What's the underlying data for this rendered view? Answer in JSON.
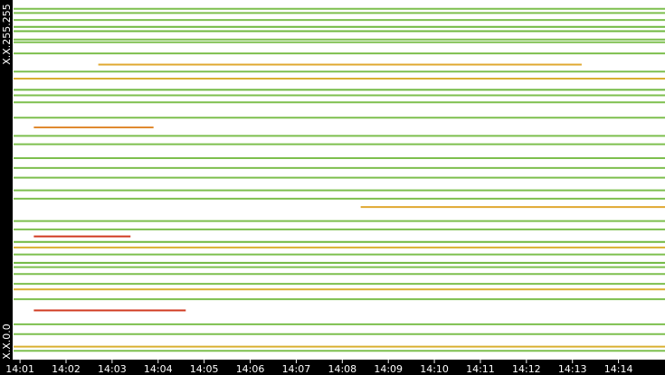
{
  "chart_data": {
    "type": "raster",
    "y_top_label": "X.X.255.255",
    "y_bottom_label": "X.X.0.0",
    "xlim": [
      0.86,
      15.01
    ],
    "ylim": [
      0,
      255
    ],
    "xticks": [
      {
        "value": 1,
        "label": "14:01"
      },
      {
        "value": 2,
        "label": "14:02"
      },
      {
        "value": 3,
        "label": "14:03"
      },
      {
        "value": 4,
        "label": "14:04"
      },
      {
        "value": 5,
        "label": "14:05"
      },
      {
        "value": 6,
        "label": "14:06"
      },
      {
        "value": 7,
        "label": "14:07"
      },
      {
        "value": 8,
        "label": "14:08"
      },
      {
        "value": 9,
        "label": "14:09"
      },
      {
        "value": 10,
        "label": "14:10"
      },
      {
        "value": 11,
        "label": "14:11"
      },
      {
        "value": 12,
        "label": "14:12"
      },
      {
        "value": 13,
        "label": "14:13"
      },
      {
        "value": 14,
        "label": "14:14"
      }
    ],
    "segments": [
      {
        "row": 250,
        "start": 0.86,
        "end": 15.01,
        "color": "#7dbf4e"
      },
      {
        "row": 247,
        "start": 0.86,
        "end": 15.01,
        "color": "#7dbf4e"
      },
      {
        "row": 242,
        "start": 0.86,
        "end": 15.01,
        "color": "#7dbf4e"
      },
      {
        "row": 237,
        "start": 0.86,
        "end": 15.01,
        "color": "#6fb83f"
      },
      {
        "row": 234,
        "start": 0.86,
        "end": 15.01,
        "color": "#6fb83f"
      },
      {
        "row": 228,
        "start": 0.86,
        "end": 15.01,
        "color": "#7dbf4e"
      },
      {
        "row": 226,
        "start": 0.86,
        "end": 15.01,
        "color": "#7dbf4e"
      },
      {
        "row": 218,
        "start": 0.86,
        "end": 15.01,
        "color": "#7dbf4e"
      },
      {
        "row": 210,
        "start": 2.7,
        "end": 13.2,
        "color": "#e0a830"
      },
      {
        "row": 205,
        "start": 0.86,
        "end": 15.01,
        "color": "#7dbf4e"
      },
      {
        "row": 200,
        "start": 0.86,
        "end": 15.01,
        "color": "#d9b030"
      },
      {
        "row": 192,
        "start": 0.86,
        "end": 15.01,
        "color": "#6fb83f"
      },
      {
        "row": 188,
        "start": 0.86,
        "end": 15.01,
        "color": "#7dbf4e"
      },
      {
        "row": 183,
        "start": 0.86,
        "end": 15.01,
        "color": "#7dbf4e"
      },
      {
        "row": 172,
        "start": 0.86,
        "end": 15.01,
        "color": "#7dbf4e"
      },
      {
        "row": 165,
        "start": 1.3,
        "end": 3.9,
        "color": "#e08a30"
      },
      {
        "row": 159,
        "start": 0.86,
        "end": 15.01,
        "color": "#7dbf4e"
      },
      {
        "row": 153,
        "start": 0.86,
        "end": 15.01,
        "color": "#7dbf4e"
      },
      {
        "row": 143,
        "start": 0.86,
        "end": 15.01,
        "color": "#7dbf4e"
      },
      {
        "row": 136,
        "start": 0.86,
        "end": 15.01,
        "color": "#7dbf4e"
      },
      {
        "row": 129,
        "start": 0.86,
        "end": 15.01,
        "color": "#7dbf4e"
      },
      {
        "row": 120,
        "start": 0.86,
        "end": 15.01,
        "color": "#7dbf4e"
      },
      {
        "row": 114,
        "start": 0.86,
        "end": 15.01,
        "color": "#7dbf4e"
      },
      {
        "row": 108,
        "start": 8.4,
        "end": 15.01,
        "color": "#e0a830"
      },
      {
        "row": 98,
        "start": 0.86,
        "end": 15.01,
        "color": "#7dbf4e"
      },
      {
        "row": 92,
        "start": 0.86,
        "end": 15.01,
        "color": "#7dbf4e"
      },
      {
        "row": 87,
        "start": 1.3,
        "end": 3.4,
        "color": "#d03a20"
      },
      {
        "row": 83,
        "start": 0.86,
        "end": 15.01,
        "color": "#6fb83f"
      },
      {
        "row": 79,
        "start": 0.86,
        "end": 15.01,
        "color": "#d9b030"
      },
      {
        "row": 74,
        "start": 0.86,
        "end": 15.01,
        "color": "#7dbf4e"
      },
      {
        "row": 68,
        "start": 0.86,
        "end": 15.01,
        "color": "#6fb83f"
      },
      {
        "row": 65,
        "start": 0.86,
        "end": 15.01,
        "color": "#7dbf4e"
      },
      {
        "row": 60,
        "start": 0.86,
        "end": 15.01,
        "color": "#7dbf4e"
      },
      {
        "row": 53,
        "start": 0.86,
        "end": 15.01,
        "color": "#7dbf4e"
      },
      {
        "row": 49,
        "start": 0.86,
        "end": 15.01,
        "color": "#d9b030"
      },
      {
        "row": 42,
        "start": 0.86,
        "end": 15.01,
        "color": "#7dbf4e"
      },
      {
        "row": 34,
        "start": 1.3,
        "end": 4.6,
        "color": "#d03a20"
      },
      {
        "row": 24,
        "start": 0.86,
        "end": 15.01,
        "color": "#7dbf4e"
      },
      {
        "row": 17,
        "start": 0.86,
        "end": 15.01,
        "color": "#7dbf4e"
      },
      {
        "row": 8,
        "start": 0.86,
        "end": 15.01,
        "color": "#d9b030"
      },
      {
        "row": 5,
        "start": 0.86,
        "end": 15.01,
        "color": "#7dbf4e"
      }
    ]
  }
}
